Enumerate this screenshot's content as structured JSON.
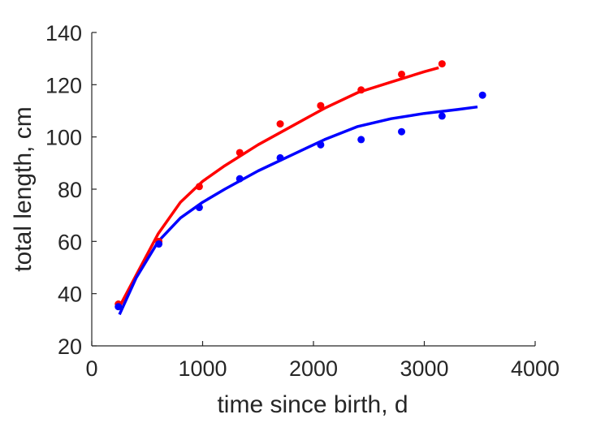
{
  "chart_data": {
    "type": "scatter",
    "title": "",
    "xlabel": "time since birth, d",
    "ylabel": "total length, cm",
    "xlim": [
      0,
      4000
    ],
    "ylim": [
      20,
      140
    ],
    "xticks": [
      0,
      1000,
      2000,
      3000,
      4000
    ],
    "yticks": [
      20,
      40,
      60,
      80,
      100,
      120,
      140
    ],
    "grid": false,
    "legend": "none",
    "series": [
      {
        "color": "#ff0000",
        "points": {
          "x": [
            240,
            605,
            970,
            1335,
            1700,
            2065,
            2430,
            2795,
            3160
          ],
          "y": [
            36,
            60,
            81,
            94,
            105,
            112,
            118,
            124,
            128
          ]
        },
        "fit": {
          "x": [
            250,
            400,
            600,
            800,
            1000,
            1200,
            1500,
            1800,
            2100,
            2400,
            2700,
            3000,
            3130
          ],
          "y": [
            35,
            47,
            63,
            75,
            83,
            89,
            97,
            104,
            111,
            117,
            121,
            125,
            126.5
          ]
        }
      },
      {
        "color": "#0000ff",
        "points": {
          "x": [
            240,
            605,
            970,
            1335,
            1700,
            2065,
            2430,
            2795,
            3160,
            3525
          ],
          "y": [
            35,
            59,
            73,
            84,
            92,
            97,
            99,
            102,
            108,
            116
          ]
        },
        "fit": {
          "x": [
            250,
            400,
            600,
            800,
            1000,
            1200,
            1500,
            1800,
            2100,
            2400,
            2700,
            3000,
            3300,
            3480
          ],
          "y": [
            32,
            46,
            60,
            69,
            75,
            80,
            87,
            93,
            99,
            104,
            107,
            109,
            110.5,
            111.5
          ]
        }
      }
    ]
  }
}
